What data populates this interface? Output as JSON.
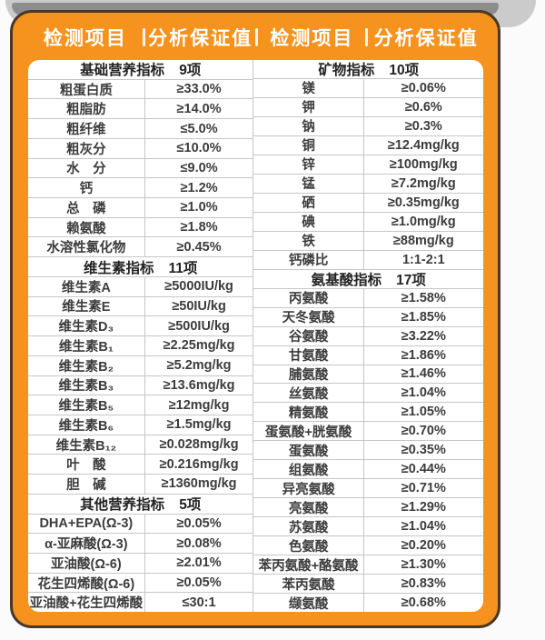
{
  "header": {
    "columns": [
      "检测项目",
      "分析保证值",
      "检测项目",
      "分析保证值"
    ]
  },
  "left_sections": [
    {
      "title": "基础营养指标",
      "count": "9项",
      "rows": [
        {
          "label": "粗蛋白质",
          "value": "≥33.0%"
        },
        {
          "label": "粗脂肪",
          "value": "≥14.0%"
        },
        {
          "label": "粗纤维",
          "value": "≤5.0%"
        },
        {
          "label": "粗灰分",
          "value": "≤10.0%"
        },
        {
          "label": "水　分",
          "value": "≤9.0%"
        },
        {
          "label": "钙",
          "value": "≥1.2%"
        },
        {
          "label": "总　磷",
          "value": "≥1.0%"
        },
        {
          "label": "赖氨酸",
          "value": "≥1.8%"
        },
        {
          "label": "水溶性氯化物",
          "value": "≥0.45%"
        }
      ]
    },
    {
      "title": "维生素指标",
      "count": "11项",
      "rows": [
        {
          "label": "维生素A",
          "value": "≥5000IU/kg"
        },
        {
          "label": "维生素E",
          "value": "≥50IU/kg"
        },
        {
          "label": "维生素D₃",
          "value": "≥500IU/kg"
        },
        {
          "label": "维生素B₁",
          "value": "≥2.25mg/kg"
        },
        {
          "label": "维生素B₂",
          "value": "≥5.2mg/kg"
        },
        {
          "label": "维生素B₃",
          "value": "≥13.6mg/kg"
        },
        {
          "label": "维生素B₅",
          "value": "≥12mg/kg"
        },
        {
          "label": "维生素B₆",
          "value": "≥1.5mg/kg"
        },
        {
          "label": "维生素B₁₂",
          "value": "≥0.028mg/kg"
        },
        {
          "label": "叶　酸",
          "value": "≥0.216mg/kg"
        },
        {
          "label": "胆　碱",
          "value": "≥1360mg/kg"
        }
      ]
    },
    {
      "title": "其他营养指标",
      "count": "5项",
      "rows": [
        {
          "label": "DHA+EPA(Ω-3)",
          "value": "≥0.05%"
        },
        {
          "label": "α-亚麻酸(Ω-3)",
          "value": "≥0.08%"
        },
        {
          "label": "亚油酸(Ω-6)",
          "value": "≥2.01%"
        },
        {
          "label": "花生四烯酸(Ω-6)",
          "value": "≥0.05%"
        },
        {
          "label": "亚油酸+花生四烯酸",
          "value": "≤30:1"
        }
      ]
    }
  ],
  "right_sections": [
    {
      "title": "矿物指标",
      "count": "10项",
      "rows": [
        {
          "label": "镁",
          "value": "≥0.06%"
        },
        {
          "label": "钾",
          "value": "≥0.6%"
        },
        {
          "label": "钠",
          "value": "≥0.3%"
        },
        {
          "label": "铜",
          "value": "≥12.4mg/kg"
        },
        {
          "label": "锌",
          "value": "≥100mg/kg"
        },
        {
          "label": "锰",
          "value": "≥7.2mg/kg"
        },
        {
          "label": "硒",
          "value": "≥0.35mg/kg"
        },
        {
          "label": "碘",
          "value": "≥1.0mg/kg"
        },
        {
          "label": "铁",
          "value": "≥88mg/kg"
        },
        {
          "label": "钙磷比",
          "value": "1:1-2:1"
        }
      ]
    },
    {
      "title": "氨基酸指标",
      "count": "17项",
      "rows": [
        {
          "label": "丙氨酸",
          "value": "≥1.58%"
        },
        {
          "label": "天冬氨酸",
          "value": "≥1.85%"
        },
        {
          "label": "谷氨酸",
          "value": "≥3.22%"
        },
        {
          "label": "甘氨酸",
          "value": "≥1.86%"
        },
        {
          "label": "脯氨酸",
          "value": "≥1.46%"
        },
        {
          "label": "丝氨酸",
          "value": "≥1.04%"
        },
        {
          "label": "精氨酸",
          "value": "≥1.05%"
        },
        {
          "label": "蛋氨酸+胱氨酸",
          "value": "≥0.70%"
        },
        {
          "label": "蛋氨酸",
          "value": "≥0.35%"
        },
        {
          "label": "组氨酸",
          "value": "≥0.44%"
        },
        {
          "label": "异亮氨酸",
          "value": "≥0.71%"
        },
        {
          "label": "亮氨酸",
          "value": "≥1.29%"
        },
        {
          "label": "苏氨酸",
          "value": "≥1.04%"
        },
        {
          "label": "色氨酸",
          "value": "≥0.20%"
        },
        {
          "label": "苯丙氨酸+酪氨酸",
          "value": "≥1.30%"
        },
        {
          "label": "苯丙氨酸",
          "value": "≥0.83%"
        },
        {
          "label": "缬氨酸",
          "value": "≥0.68%"
        }
      ]
    }
  ],
  "colors": {
    "accent_orange": "#F6921E",
    "card_outline": "#46382B",
    "grid_line": "#C6C6C6",
    "row_text": "#3C3C3C",
    "header_text": "#FFFFFF",
    "top_bar_dark": "#8D8D8D",
    "top_bar_light": "#CBCBCB"
  }
}
